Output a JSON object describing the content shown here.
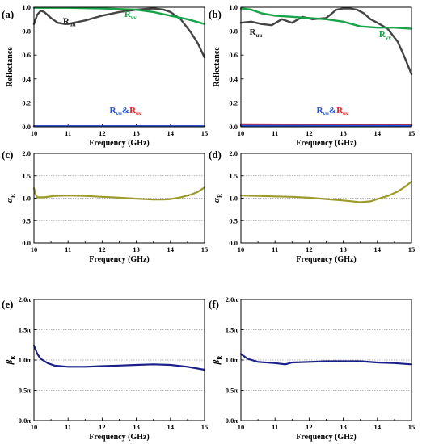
{
  "chart_data": [
    {
      "panel": "(a)",
      "type": "line",
      "xlabel": "Frequency (GHz)",
      "ylabel": "Reflectance",
      "xlim": [
        10,
        15
      ],
      "ylim": [
        0,
        1
      ],
      "xticks": [
        "10",
        "11",
        "12",
        "13",
        "14",
        "15"
      ],
      "yticks": [
        "0.0",
        "0.2",
        "0.4",
        "0.6",
        "0.8",
        "1.0"
      ],
      "grid": false,
      "annotations": [
        {
          "main": "R",
          "sub": "uu",
          "color": "#222222",
          "x": 10.85,
          "y": 0.86
        },
        {
          "main": "R",
          "sub": "vv",
          "color": "#17a348",
          "x": 12.65,
          "y": 0.92
        }
      ],
      "legend_text": {
        "a": "R",
        "a_sub": "vu",
        "amp": "&",
        "b": "R",
        "b_sub": "uv",
        "a_color": "#1f4fd6",
        "b_color": "#e8231f"
      },
      "series": [
        {
          "color": "#444444",
          "x": [
            10,
            10.1,
            10.2,
            10.3,
            10.5,
            10.7,
            10.9,
            11,
            11.5,
            12,
            12.5,
            13,
            13.5,
            13.8,
            14,
            14.3,
            14.6,
            14.8,
            15
          ],
          "y": [
            0.86,
            0.94,
            0.97,
            0.96,
            0.91,
            0.87,
            0.86,
            0.86,
            0.89,
            0.93,
            0.96,
            0.98,
            0.99,
            0.98,
            0.96,
            0.9,
            0.79,
            0.7,
            0.58
          ]
        },
        {
          "color": "#17a348",
          "x": [
            10,
            11,
            12,
            13,
            13.5,
            14,
            14.5,
            15
          ],
          "y": [
            0.995,
            0.995,
            0.99,
            0.98,
            0.96,
            0.93,
            0.9,
            0.86
          ]
        },
        {
          "color": "#e8231f",
          "x": [
            10,
            15
          ],
          "y": [
            0.005,
            0.005
          ]
        },
        {
          "color": "#1f4fd6",
          "x": [
            10,
            15
          ],
          "y": [
            0.005,
            0.005
          ]
        }
      ]
    },
    {
      "panel": "(b)",
      "type": "line",
      "xlabel": "Frequency (GHz)",
      "ylabel": "Reflectance",
      "xlim": [
        10,
        15
      ],
      "ylim": [
        0,
        1
      ],
      "xticks": [
        "10",
        "11",
        "12",
        "13",
        "14",
        "15"
      ],
      "yticks": [
        "0.0",
        "0.2",
        "0.4",
        "0.6",
        "0.8",
        "1.0"
      ],
      "grid": false,
      "annotations": [
        {
          "main": "R",
          "sub": "uu",
          "color": "#222222",
          "x": 10.25,
          "y": 0.77
        },
        {
          "main": "R",
          "sub": "vv",
          "color": "#17a348",
          "x": 14.05,
          "y": 0.75
        }
      ],
      "legend_text": {
        "a": "R",
        "a_sub": "vu",
        "amp": "&",
        "b": "R",
        "b_sub": "uv",
        "a_color": "#1f4fd6",
        "b_color": "#e8231f"
      },
      "series": [
        {
          "color": "#444444",
          "x": [
            10,
            10.3,
            10.6,
            10.9,
            11.2,
            11.5,
            11.8,
            12.1,
            12.5,
            12.8,
            13,
            13.2,
            13.4,
            13.6,
            13.8,
            14,
            14.3,
            14.6,
            14.8,
            15
          ],
          "y": [
            0.87,
            0.88,
            0.86,
            0.85,
            0.9,
            0.87,
            0.92,
            0.9,
            0.91,
            0.98,
            0.99,
            0.99,
            0.98,
            0.95,
            0.9,
            0.87,
            0.82,
            0.71,
            0.58,
            0.44
          ]
        },
        {
          "color": "#17a348",
          "x": [
            10,
            10.3,
            10.6,
            11,
            11.5,
            12,
            12.5,
            13,
            13.5,
            14,
            14.5,
            15
          ],
          "y": [
            0.99,
            0.98,
            0.95,
            0.93,
            0.92,
            0.91,
            0.9,
            0.88,
            0.84,
            0.83,
            0.83,
            0.82
          ]
        },
        {
          "color": "#e8231f",
          "x": [
            10,
            12,
            15
          ],
          "y": [
            0.02,
            0.018,
            0.015
          ]
        },
        {
          "color": "#1f4fd6",
          "x": [
            10,
            15
          ],
          "y": [
            0.008,
            0.008
          ]
        }
      ]
    },
    {
      "panel": "(c)",
      "type": "line",
      "xlabel": "Frequency (GHz)",
      "ylabel": "α",
      "ylabel_sub": "R",
      "xlim": [
        10,
        15
      ],
      "ylim": [
        0,
        2
      ],
      "xticks": [
        "10",
        "11",
        "12",
        "13",
        "14",
        "15"
      ],
      "yticks": [
        "0.0",
        "0.5",
        "1.0",
        "1.5",
        "2.0"
      ],
      "grid": true,
      "series": [
        {
          "color": "#9c9a2a",
          "x": [
            10,
            10.05,
            10.1,
            10.3,
            10.6,
            11,
            11.5,
            12,
            12.5,
            13,
            13.5,
            13.8,
            14,
            14.3,
            14.6,
            14.8,
            15
          ],
          "y": [
            1.22,
            1.08,
            1.02,
            1.02,
            1.05,
            1.06,
            1.05,
            1.03,
            1.01,
            0.99,
            0.97,
            0.97,
            0.98,
            1.02,
            1.08,
            1.14,
            1.24
          ]
        }
      ]
    },
    {
      "panel": "(d)",
      "type": "line",
      "xlabel": "Frequency (GHz)",
      "ylabel": "α",
      "ylabel_sub": "R",
      "xlim": [
        10,
        15
      ],
      "ylim": [
        0,
        2
      ],
      "xticks": [
        "10",
        "11",
        "12",
        "13",
        "14",
        "15"
      ],
      "yticks": [
        "0.0",
        "0.5",
        "1.0",
        "1.5",
        "2.0"
      ],
      "grid": true,
      "series": [
        {
          "color": "#9c9a2a",
          "x": [
            10,
            10.5,
            11,
            11.5,
            12,
            12.5,
            13,
            13.5,
            13.8,
            14,
            14.3,
            14.6,
            14.8,
            15
          ],
          "y": [
            1.06,
            1.05,
            1.04,
            1.03,
            1.01,
            0.98,
            0.95,
            0.91,
            0.93,
            0.98,
            1.05,
            1.15,
            1.25,
            1.37
          ]
        }
      ]
    },
    {
      "panel": "(e)",
      "type": "line",
      "xlabel": "Frequency (GHz)",
      "ylabel": "β",
      "ylabel_sub": "R",
      "xlim": [
        10,
        15
      ],
      "ylim": [
        0,
        2
      ],
      "xticks": [
        "10",
        "11",
        "12",
        "13",
        "14",
        "15"
      ],
      "yticks": [
        "0.0π",
        "0.5π",
        "1.0π",
        "1.5π",
        "2.0π"
      ],
      "grid": true,
      "series": [
        {
          "color": "#1b1f8a",
          "x": [
            10,
            10.1,
            10.2,
            10.4,
            10.6,
            11,
            11.5,
            12,
            12.5,
            13,
            13.5,
            14,
            14.5,
            15
          ],
          "y": [
            1.24,
            1.1,
            1.02,
            0.95,
            0.91,
            0.89,
            0.89,
            0.9,
            0.91,
            0.92,
            0.93,
            0.92,
            0.89,
            0.84
          ]
        }
      ]
    },
    {
      "panel": "(f)",
      "type": "line",
      "xlabel": "Frequency (GHz)",
      "ylabel": "β",
      "ylabel_sub": "R",
      "xlim": [
        10,
        15
      ],
      "ylim": [
        0,
        2
      ],
      "xticks": [
        "10",
        "11",
        "12",
        "13",
        "14",
        "15"
      ],
      "yticks": [
        "0.0π",
        "0.5π",
        "1.0π",
        "1.5π",
        "2.0π"
      ],
      "grid": true,
      "series": [
        {
          "color": "#1b1f8a",
          "x": [
            10,
            10.2,
            10.5,
            11,
            11.3,
            11.5,
            12,
            12.5,
            13,
            13.5,
            14,
            14.5,
            15
          ],
          "y": [
            1.1,
            1.02,
            0.97,
            0.95,
            0.93,
            0.96,
            0.97,
            0.98,
            0.98,
            0.98,
            0.96,
            0.95,
            0.93
          ]
        }
      ]
    }
  ]
}
